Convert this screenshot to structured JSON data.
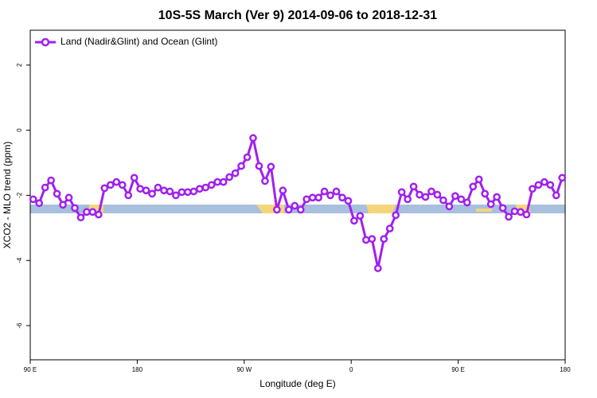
{
  "chart_data": {
    "type": "line",
    "title": "10S-5S March (Ver 9)   2014-09-06 to 2018-12-31",
    "xlabel": "Longitude (deg E)",
    "ylabel": "XCO2 - MLO trend (ppm)",
    "x": [
      92.5,
      97.5,
      102.5,
      107.5,
      112.5,
      117.5,
      122.5,
      127.5,
      132.5,
      137.5,
      142.5,
      147.5,
      152.5,
      157.5,
      162.5,
      167.5,
      172.5,
      177.5,
      182.5,
      187.5,
      192.5,
      197.5,
      202.5,
      207.5,
      212.5,
      217.5,
      222.5,
      227.5,
      232.5,
      237.5,
      242.5,
      247.5,
      252.5,
      257.5,
      262.5,
      267.5,
      272.5,
      277.5,
      282.5,
      287.5,
      292.5,
      297.5,
      302.5,
      307.5,
      312.5,
      317.5,
      322.5,
      327.5,
      332.5,
      337.5,
      342.5,
      347.5,
      352.5,
      357.5,
      362.5,
      367.5,
      372.5,
      377.5,
      382.5,
      387.5,
      392.5,
      397.5,
      402.5,
      407.5,
      412.5,
      417.5,
      422.5,
      427.5,
      432.5,
      437.5,
      442.5,
      447.5,
      452.5,
      457.5,
      462.5,
      467.5,
      472.5,
      477.5,
      482.5,
      487.5,
      492.5,
      497.5,
      502.5,
      507.5,
      512.5,
      517.5,
      522.5,
      527.5,
      532.5,
      537.5
    ],
    "series": [
      {
        "name": "Land (Nadir&Glint) and Ocean (Glint)",
        "color": "#a020f0",
        "values": [
          -2.12,
          -2.24,
          -1.76,
          -1.54,
          -1.95,
          -2.29,
          -2.07,
          -2.39,
          -2.68,
          -2.51,
          -2.51,
          -2.59,
          -1.78,
          -1.68,
          -1.59,
          -1.68,
          -2.0,
          -1.46,
          -1.8,
          -1.85,
          -1.95,
          -1.76,
          -1.85,
          -1.88,
          -2.0,
          -1.9,
          -1.9,
          -1.88,
          -1.8,
          -1.76,
          -1.68,
          -1.59,
          -1.59,
          -1.44,
          -1.32,
          -1.1,
          -0.83,
          -0.24,
          -1.1,
          -1.56,
          -1.12,
          -2.44,
          -1.85,
          -2.44,
          -2.32,
          -2.44,
          -2.12,
          -2.07,
          -2.07,
          -1.88,
          -2.0,
          -1.88,
          -2.07,
          -2.17,
          -2.78,
          -2.63,
          -3.37,
          -3.34,
          -4.24,
          -3.34,
          -3.02,
          -2.61,
          -1.9,
          -2.12,
          -1.73,
          -1.98,
          -2.05,
          -1.88,
          -1.98,
          -2.15,
          -2.34,
          -2.02,
          -2.12,
          -2.22,
          -1.73,
          -1.51,
          -1.95,
          -2.27,
          -2.05,
          -2.39,
          -2.66,
          -2.49,
          -2.51,
          -2.59,
          -1.8,
          -1.68,
          -1.59,
          -1.68,
          -2.0,
          -1.46
        ]
      }
    ],
    "xlim": [
      90,
      540
    ],
    "xticks": [
      {
        "value": 90,
        "label": "90 E"
      },
      180,
      {
        "value": 270,
        "label": "90 W"
      },
      {
        "value": 360,
        "label": "0"
      },
      {
        "value": 450,
        "label": "90 E"
      },
      180
    ],
    "ylim": [
      -7.05,
      3.07
    ],
    "yticks": [
      -6,
      -4,
      -2,
      0,
      2
    ],
    "legend": "top-left"
  }
}
